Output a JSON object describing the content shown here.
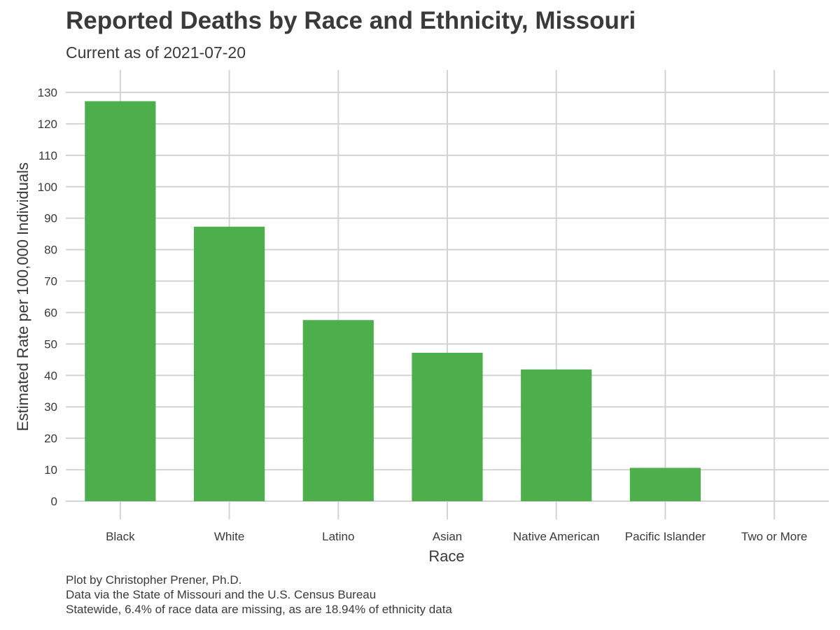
{
  "title": "Reported Deaths by Race and Ethnicity, Missouri",
  "subtitle": "Current as of 2021-07-20",
  "caption": [
    "Plot by Christopher Prener, Ph.D.",
    "Data via the State of Missouri and the U.S. Census Bureau",
    "Statewide, 6.4% of race data are missing, as are 18.94% of ethnicity data"
  ],
  "colors": {
    "bar": "#4caf4c",
    "grid": "#d3d3d3",
    "text": "#3a3a3a"
  },
  "chart_data": {
    "type": "bar",
    "title": "Reported Deaths by Race and Ethnicity, Missouri",
    "subtitle": "Current as of 2021-07-20",
    "xlabel": "Race",
    "ylabel": "Estimated Rate per 100,000 Individuals",
    "categories": [
      "Black",
      "White",
      "Latino",
      "Asian",
      "Native American",
      "Pacific Islander",
      "Two or More"
    ],
    "values": [
      127.2,
      87.3,
      57.6,
      47.2,
      41.9,
      10.6,
      0
    ],
    "ylim": [
      0,
      130
    ],
    "yticks": [
      0,
      10,
      20,
      30,
      40,
      50,
      60,
      70,
      80,
      90,
      100,
      110,
      120,
      130
    ],
    "grid": true,
    "legend": "none"
  }
}
